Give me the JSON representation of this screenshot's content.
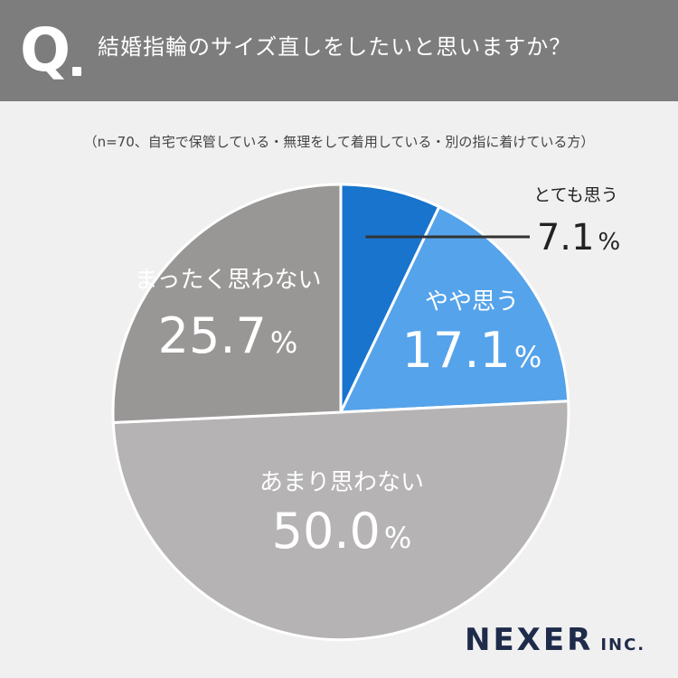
{
  "header": {
    "q_label": "Q",
    "question": "結婚指輪のサイズ直しをしたいと思いますか？"
  },
  "note": "（n=70、自宅で保管している・無理をして着用している・別の指に着けている方）",
  "colors": {
    "header_bg": "#7d7d7d",
    "slice_strongly_agree": "#1874cd",
    "slice_somewhat_agree": "#55a3ea",
    "slice_not_much": "#b5b3b3",
    "slice_not_at_all": "#999796",
    "leader_line": "#333333"
  },
  "chart_data": {
    "type": "pie",
    "title": "結婚指輪のサイズ直しをしたいと思いますか？",
    "start": "12 o'clock, clockwise",
    "slices": [
      {
        "label": "とても思う",
        "value": 7.1,
        "display": "7.1",
        "unit": "%"
      },
      {
        "label": "やや思う",
        "value": 17.1,
        "display": "17.1",
        "unit": "%"
      },
      {
        "label": "あまり思わない",
        "value": 50.0,
        "display": "50.0",
        "unit": "%"
      },
      {
        "label": "まったく思わない",
        "value": 25.7,
        "display": "25.7",
        "unit": "%"
      }
    ]
  },
  "brand": {
    "name": "NEXER",
    "suffix": "INC."
  }
}
